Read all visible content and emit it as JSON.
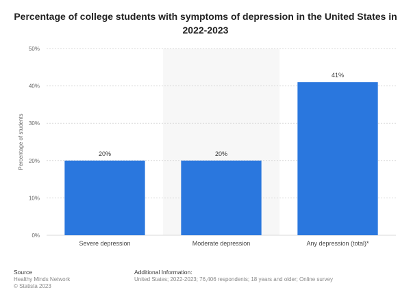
{
  "title": "Percentage of college students with symptoms of depression in the United States in 2022-2023",
  "chart_data": {
    "type": "bar",
    "categories": [
      "Severe depression",
      "Moderate depression",
      "Any depression (total)*"
    ],
    "values": [
      20,
      20,
      41
    ],
    "value_labels": [
      "20%",
      "20%",
      "41%"
    ],
    "ylabel": "Percentage of students",
    "xlabel": "",
    "ylim": [
      0,
      50
    ],
    "yticks": [
      0,
      10,
      20,
      30,
      40,
      50
    ],
    "ytick_labels": [
      "0%",
      "10%",
      "20%",
      "30%",
      "40%",
      "50%"
    ],
    "bar_color": "#2a77de",
    "grid": true,
    "highlight_band_color": "#f7f7f7"
  },
  "footer": {
    "source_heading": "Source",
    "source_lines": [
      "Healthy Minds Network",
      "© Statista 2023"
    ],
    "info_heading": "Additional Information:",
    "info_text": "United States; 2022-2023; 76,406 respondents; 18 years and older; Online survey"
  }
}
